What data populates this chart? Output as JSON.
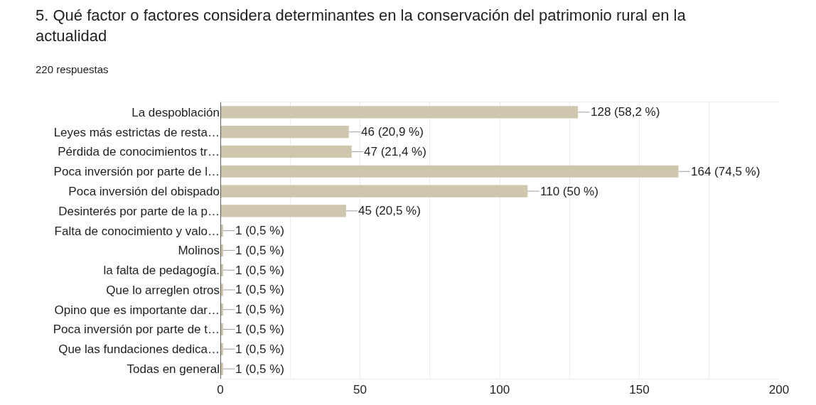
{
  "chart_data": {
    "type": "bar",
    "orientation": "horizontal",
    "title": "5. Qué factor o factores considera determinantes en la conservación del patrimonio rural en la actualidad",
    "subtitle": "220 respuestas",
    "categories": [
      "La despoblación",
      "Leyes más estrictas de resta…",
      "Pérdida de conocimientos tr…",
      "Poca inversión por parte de l…",
      "Poca inversión del obispado",
      "Desinterés por parte de la p…",
      "Falta de conocimiento y valo…",
      "Molinos",
      "la falta de pedagogía.",
      "Que lo arreglen otros",
      "Opino que es importante dar…",
      "Poca inversión por parte de t…",
      "Que las fundaciones dedica…",
      "Todas en general"
    ],
    "values": [
      128,
      46,
      47,
      164,
      110,
      45,
      1,
      1,
      1,
      1,
      1,
      1,
      1,
      1
    ],
    "value_labels": [
      "128 (58,2 %)",
      "46 (20,9 %)",
      "47 (21,4 %)",
      "164 (74,5 %)",
      "110 (50 %)",
      "45 (20,5 %)",
      "1 (0,5 %)",
      "1 (0,5 %)",
      "1 (0,5 %)",
      "1 (0,5 %)",
      "1 (0,5 %)",
      "1 (0,5 %)",
      "1 (0,5 %)",
      "1 (0,5 %)"
    ],
    "color": "#cfc6ae",
    "xlim": [
      0,
      200
    ],
    "xticks": [
      0,
      {
        "value": 25,
        "label": null
      },
      50,
      {
        "value": 75,
        "label": null
      },
      100,
      {
        "value": 125,
        "label": null
      },
      150,
      {
        "value": 175,
        "label": null
      },
      200
    ],
    "grid": "x"
  }
}
